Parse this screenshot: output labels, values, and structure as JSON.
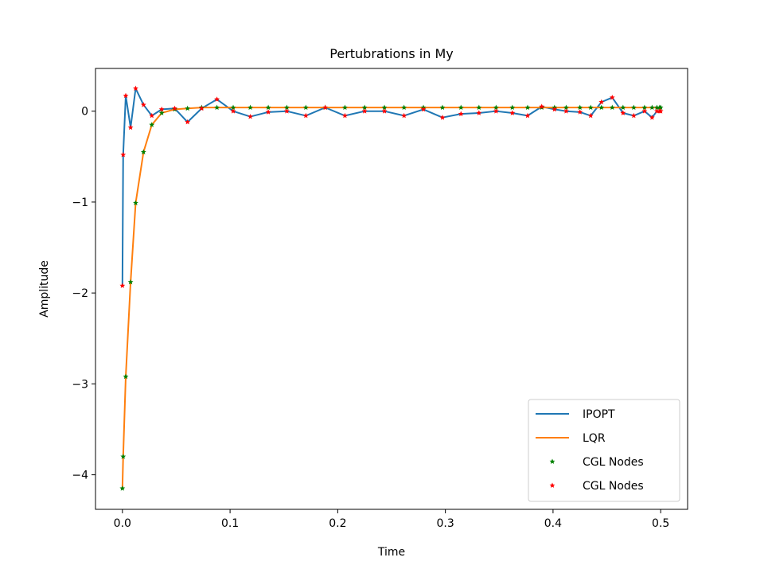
{
  "chart_data": {
    "type": "line",
    "title": "Pertubrations in My",
    "xlabel": "Time",
    "ylabel": "Amplitude",
    "xlim": [
      -0.025,
      0.525
    ],
    "ylim": [
      -4.38,
      0.47
    ],
    "xticks": [
      0.0,
      0.1,
      0.2,
      0.3,
      0.4,
      0.5
    ],
    "xtick_labels": [
      "0.0",
      "0.1",
      "0.2",
      "0.3",
      "0.4",
      "0.5"
    ],
    "yticks": [
      0,
      -1,
      -2,
      -3,
      -4
    ],
    "ytick_labels": [
      "0",
      "−1",
      "−2",
      "−3",
      "−4"
    ],
    "grid": false,
    "legend_position": "bottom-right",
    "series": [
      {
        "name": "IPOPT",
        "style": "line",
        "color": "#1f77b4",
        "x": [
          0.0,
          0.0007,
          0.0031,
          0.0076,
          0.0123,
          0.0196,
          0.0273,
          0.0365,
          0.0486,
          0.0605,
          0.0736,
          0.0878,
          0.1029,
          0.1188,
          0.1355,
          0.1527,
          0.1704,
          0.1884,
          0.2067,
          0.225,
          0.2434,
          0.2616,
          0.2796,
          0.2973,
          0.3145,
          0.3312,
          0.3471,
          0.3622,
          0.3764,
          0.3895,
          0.4014,
          0.4122,
          0.425,
          0.435,
          0.445,
          0.455,
          0.465,
          0.475,
          0.485,
          0.492,
          0.4965,
          0.499,
          0.5
        ],
        "y": [
          -1.92,
          -0.48,
          0.17,
          -0.18,
          0.25,
          0.07,
          -0.05,
          0.02,
          0.03,
          -0.12,
          0.03,
          0.13,
          0.0,
          -0.06,
          -0.01,
          0.0,
          -0.05,
          0.04,
          -0.05,
          0.0,
          0.0,
          -0.05,
          0.02,
          -0.07,
          -0.03,
          -0.02,
          0.0,
          -0.02,
          -0.05,
          0.05,
          0.02,
          0.0,
          -0.01,
          -0.05,
          0.1,
          0.15,
          -0.02,
          -0.05,
          0.0,
          -0.07,
          0.0,
          0.0,
          0.0
        ]
      },
      {
        "name": "LQR",
        "style": "line",
        "color": "#ff7f0e",
        "x": [
          0.0,
          0.0007,
          0.0031,
          0.0076,
          0.0123,
          0.0196,
          0.0273,
          0.0365,
          0.0486,
          0.0605,
          0.0736,
          0.0878,
          0.1029,
          0.1188,
          0.1355,
          0.1527,
          0.1704,
          0.1884,
          0.2067,
          0.225,
          0.2434,
          0.2616,
          0.2796,
          0.2973,
          0.3145,
          0.3312,
          0.3471,
          0.3622,
          0.3764,
          0.3895,
          0.4014,
          0.4122,
          0.425,
          0.435,
          0.445,
          0.455,
          0.465,
          0.475,
          0.485,
          0.492,
          0.4965,
          0.499,
          0.5
        ],
        "y": [
          -4.15,
          -3.8,
          -2.92,
          -1.88,
          -1.01,
          -0.45,
          -0.15,
          -0.02,
          0.02,
          0.03,
          0.04,
          0.04,
          0.04,
          0.04,
          0.04,
          0.04,
          0.04,
          0.04,
          0.04,
          0.04,
          0.04,
          0.04,
          0.04,
          0.04,
          0.04,
          0.04,
          0.04,
          0.04,
          0.04,
          0.04,
          0.04,
          0.04,
          0.04,
          0.04,
          0.04,
          0.04,
          0.04,
          0.04,
          0.04,
          0.04,
          0.04,
          0.04,
          0.04
        ]
      },
      {
        "name": "CGL Nodes",
        "style": "markers",
        "marker": "star",
        "color": "#008000",
        "x": [
          0.0,
          0.0007,
          0.0031,
          0.0076,
          0.0123,
          0.0196,
          0.0273,
          0.0365,
          0.0486,
          0.0605,
          0.0736,
          0.0878,
          0.1029,
          0.1188,
          0.1355,
          0.1527,
          0.1704,
          0.1884,
          0.2067,
          0.225,
          0.2434,
          0.2616,
          0.2796,
          0.2973,
          0.3145,
          0.3312,
          0.3471,
          0.3622,
          0.3764,
          0.3895,
          0.4014,
          0.4122,
          0.425,
          0.435,
          0.445,
          0.455,
          0.465,
          0.475,
          0.485,
          0.492,
          0.4965,
          0.499,
          0.5
        ],
        "y": [
          -4.15,
          -3.8,
          -2.92,
          -1.88,
          -1.01,
          -0.45,
          -0.15,
          -0.02,
          0.02,
          0.03,
          0.04,
          0.04,
          0.04,
          0.04,
          0.04,
          0.04,
          0.04,
          0.04,
          0.04,
          0.04,
          0.04,
          0.04,
          0.04,
          0.04,
          0.04,
          0.04,
          0.04,
          0.04,
          0.04,
          0.04,
          0.04,
          0.04,
          0.04,
          0.04,
          0.04,
          0.04,
          0.04,
          0.04,
          0.04,
          0.04,
          0.04,
          0.04,
          0.04
        ]
      },
      {
        "name": "CGL Nodes",
        "style": "markers",
        "marker": "star",
        "color": "#ff0000",
        "x": [
          0.0,
          0.0007,
          0.0031,
          0.0076,
          0.0123,
          0.0196,
          0.0273,
          0.0365,
          0.0486,
          0.0605,
          0.0736,
          0.0878,
          0.1029,
          0.1188,
          0.1355,
          0.1527,
          0.1704,
          0.1884,
          0.2067,
          0.225,
          0.2434,
          0.2616,
          0.2796,
          0.2973,
          0.3145,
          0.3312,
          0.3471,
          0.3622,
          0.3764,
          0.3895,
          0.4014,
          0.4122,
          0.425,
          0.435,
          0.445,
          0.455,
          0.465,
          0.475,
          0.485,
          0.492,
          0.4965,
          0.499,
          0.5
        ],
        "y": [
          -1.92,
          -0.48,
          0.17,
          -0.18,
          0.25,
          0.07,
          -0.05,
          0.02,
          0.03,
          -0.12,
          0.03,
          0.13,
          0.0,
          -0.06,
          -0.01,
          0.0,
          -0.05,
          0.04,
          -0.05,
          0.0,
          0.0,
          -0.05,
          0.02,
          -0.07,
          -0.03,
          -0.02,
          0.0,
          -0.02,
          -0.05,
          0.05,
          0.02,
          0.0,
          -0.01,
          -0.05,
          0.1,
          0.15,
          -0.02,
          -0.05,
          0.0,
          -0.07,
          0.0,
          0.0,
          0.0
        ]
      }
    ]
  }
}
